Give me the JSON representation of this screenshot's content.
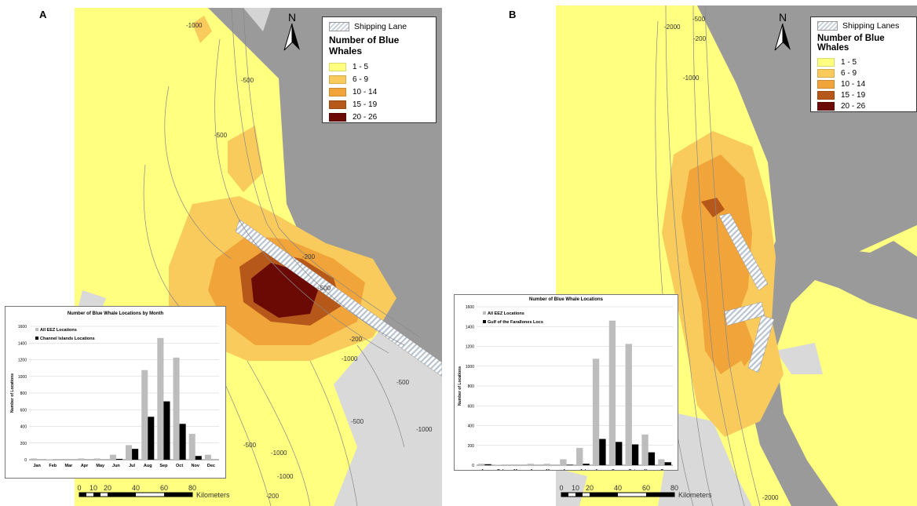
{
  "panels": [
    {
      "letter": "A",
      "north_label": "N",
      "legend": {
        "shipping_label": "Shipping Lane",
        "title": "Number of Blue Whales",
        "classes": [
          {
            "label": "1 - 5",
            "color": "#ffff80"
          },
          {
            "label": "6 - 9",
            "color": "#f9cb5c"
          },
          {
            "label": "10 - 14",
            "color": "#f0a43a"
          },
          {
            "label": "15 - 19",
            "color": "#b5581a"
          },
          {
            "label": "20 - 26",
            "color": "#6b0a05"
          }
        ]
      },
      "contour_labels": [
        "-1000",
        "-500",
        "-500",
        "-200",
        "-500",
        "-200",
        "-1000",
        "-500",
        "-500",
        "-1000",
        "-500",
        "-200",
        "-1000",
        "-1000",
        "-500",
        "-500",
        "-1000",
        "-500"
      ],
      "scale": {
        "ticks": [
          "0",
          "10",
          "20",
          "40",
          "60",
          "80"
        ],
        "unit": "Kilometers"
      },
      "inset": {
        "title": "Number of Blue Whale Locations by Month",
        "legend": [
          "All EEZ Locations",
          "Channel Islands Locations"
        ],
        "ylabel": "Number of Locations"
      }
    },
    {
      "letter": "B",
      "north_label": "N",
      "legend": {
        "shipping_label": "Shipping Lanes",
        "title": "Number of Blue Whales",
        "classes": [
          {
            "label": "1 - 5",
            "color": "#ffff80"
          },
          {
            "label": "6 - 9",
            "color": "#f9cb5c"
          },
          {
            "label": "10 - 14",
            "color": "#f0a43a"
          },
          {
            "label": "15 - 19",
            "color": "#b5581a"
          },
          {
            "label": "20 - 26",
            "color": "#6b0a05"
          }
        ]
      },
      "contour_labels": [
        "-2000",
        "-500",
        "-200",
        "-1000",
        "-2000"
      ],
      "scale": {
        "ticks": [
          "0",
          "10",
          "20",
          "40",
          "60",
          "80"
        ],
        "unit": "Kilometers"
      },
      "inset": {
        "title": "Number of Blue Whale Locations",
        "legend": [
          "All EEZ Locations",
          "Gulf of the Farallones Locs"
        ],
        "ylabel": "Number of Locations"
      }
    }
  ],
  "chart_data": [
    {
      "type": "bar",
      "title": "Number of Blue Whale Locations by Month",
      "ylabel": "Number of Locations",
      "xlabel": "",
      "ylim": [
        0,
        1600
      ],
      "yticks": [
        0,
        200,
        400,
        600,
        800,
        1000,
        1200,
        1400,
        1600
      ],
      "categories": [
        "Jan",
        "Feb",
        "Mar",
        "Apr",
        "May",
        "Jun",
        "Jul",
        "Aug",
        "Sep",
        "Oct",
        "Nov",
        "Dec"
      ],
      "series": [
        {
          "name": "All EEZ Locations",
          "color": "#bdbdbd",
          "values": [
            15,
            5,
            0,
            15,
            15,
            60,
            175,
            1075,
            1460,
            1225,
            310,
            60
          ]
        },
        {
          "name": "Channel Islands Locations",
          "color": "#000000",
          "values": [
            0,
            0,
            0,
            0,
            0,
            10,
            130,
            515,
            700,
            430,
            45,
            0
          ]
        }
      ]
    },
    {
      "type": "bar",
      "title": "Number of Blue Whale Locations",
      "ylabel": "Number of Locations",
      "xlabel": "",
      "ylim": [
        0,
        1600
      ],
      "yticks": [
        0,
        200,
        400,
        600,
        800,
        1000,
        1200,
        1400,
        1600
      ],
      "categories": [
        "Jan",
        "Feb",
        "Mar",
        "Apr",
        "May",
        "Jun",
        "Jul",
        "Aug",
        "Sep",
        "Oct",
        "Nov",
        "Dec"
      ],
      "series": [
        {
          "name": "All EEZ Locations",
          "color": "#bdbdbd",
          "values": [
            15,
            5,
            0,
            15,
            15,
            60,
            175,
            1075,
            1460,
            1225,
            310,
            60
          ]
        },
        {
          "name": "Gulf of the Farallones Locs",
          "color": "#000000",
          "values": [
            10,
            0,
            0,
            0,
            0,
            5,
            15,
            265,
            235,
            210,
            130,
            30
          ]
        }
      ]
    }
  ]
}
